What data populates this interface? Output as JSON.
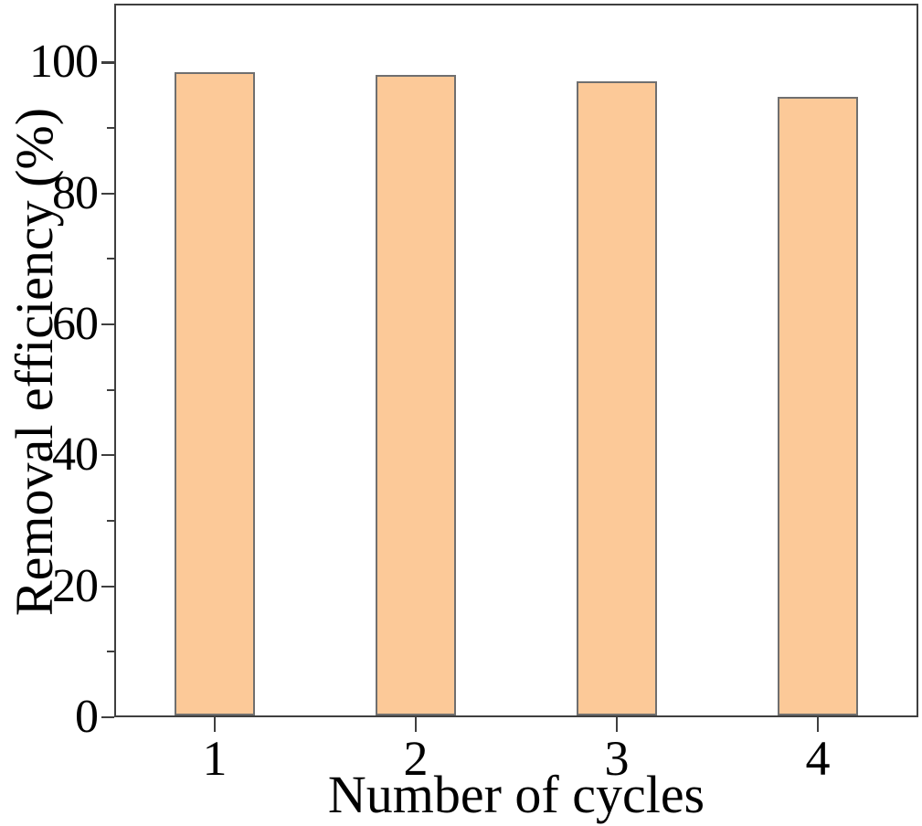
{
  "chart_data": {
    "type": "bar",
    "title": "",
    "categories": [
      "1",
      "2",
      "3",
      "4"
    ],
    "values": [
      98.2,
      97.8,
      96.8,
      94.5
    ],
    "xlabel": "Number of cycles",
    "ylabel": "Removal efficiency (%)",
    "ylim": [
      0,
      109
    ],
    "yticks": [
      0,
      20,
      40,
      60,
      80,
      100
    ],
    "ytick_labels": [
      "0",
      "20",
      "40",
      "60",
      "80",
      "100"
    ],
    "y_minor_step": 10,
    "grid": false,
    "legend": false,
    "colors": {
      "bar_fill": "#fcc998",
      "bar_edge": "#6f6f6f",
      "axis": "#3f3f3f",
      "text": "#000000",
      "background": "#ffffff"
    },
    "bar_width_fraction": 0.4
  }
}
